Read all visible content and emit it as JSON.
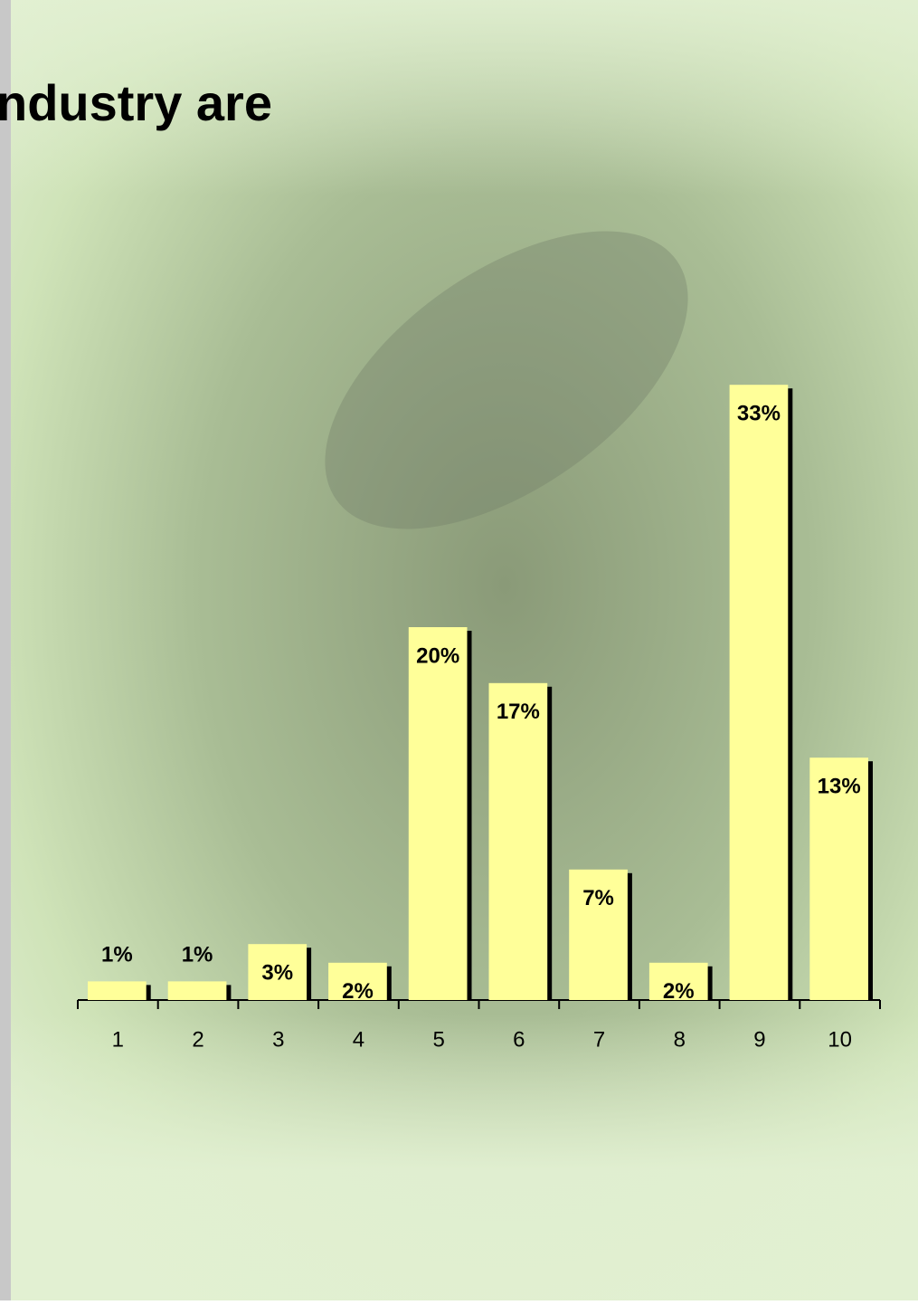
{
  "chart_data": {
    "type": "bar",
    "title": "ndustry are",
    "categories": [
      "1",
      "2",
      "3",
      "4",
      "5",
      "6",
      "7",
      "8",
      "9",
      "10"
    ],
    "values": [
      1,
      1,
      3,
      2,
      20,
      17,
      7,
      2,
      33,
      13
    ],
    "value_labels": [
      "1%",
      "1%",
      "3%",
      "2%",
      "20%",
      "17%",
      "7%",
      "2%",
      "33%",
      "13%"
    ],
    "color": "#ffff99"
  }
}
